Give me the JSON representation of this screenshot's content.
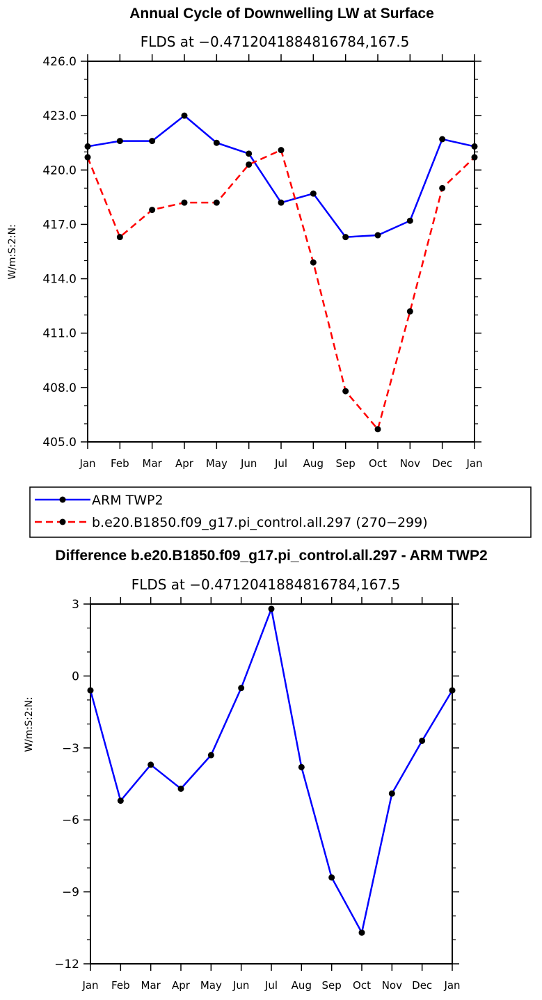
{
  "chart_data": [
    {
      "type": "line",
      "title": "Annual Cycle of Downwelling LW at Surface",
      "subtitle": "FLDS at −0.4712041884816784,167.5",
      "xlabel": "",
      "ylabel": "W/m:S:2:N:",
      "categories": [
        "Jan",
        "Feb",
        "Mar",
        "Apr",
        "May",
        "Jun",
        "Jul",
        "Aug",
        "Sep",
        "Oct",
        "Nov",
        "Dec",
        "Jan"
      ],
      "ylim": [
        405.0,
        426.0
      ],
      "yticks": [
        "405.0",
        "408.0",
        "411.0",
        "414.0",
        "417.0",
        "420.0",
        "423.0",
        "426.0"
      ],
      "series": [
        {
          "name": "ARM TWP2",
          "color": "#0000ff",
          "dash": "solid",
          "values": [
            421.3,
            421.6,
            421.6,
            423.0,
            421.5,
            420.9,
            418.2,
            418.7,
            416.3,
            416.4,
            417.2,
            421.7,
            421.3
          ]
        },
        {
          "name": "b.e20.B1850.f09_g17.pi_control.all.297 (270−299)",
          "color": "#ff0000",
          "dash": "dashed",
          "values": [
            420.7,
            416.3,
            417.8,
            418.2,
            418.2,
            420.3,
            421.1,
            414.9,
            407.8,
            405.7,
            412.2,
            419.0,
            420.7
          ]
        }
      ]
    },
    {
      "type": "line",
      "title": "Difference b.e20.B1850.f09_g17.pi_control.all.297 - ARM TWP2",
      "subtitle": "FLDS at −0.4712041884816784,167.5",
      "xlabel": "",
      "ylabel": "W/m:S:2:N:",
      "categories": [
        "Jan",
        "Feb",
        "Mar",
        "Apr",
        "May",
        "Jun",
        "Jul",
        "Aug",
        "Sep",
        "Oct",
        "Nov",
        "Dec",
        "Jan"
      ],
      "ylim": [
        -12,
        3
      ],
      "yticks": [
        "−12",
        "−9",
        "−6",
        "−3",
        "0",
        "3"
      ],
      "series": [
        {
          "name": "Difference",
          "color": "#0000ff",
          "dash": "solid",
          "values": [
            -0.6,
            -5.2,
            -3.7,
            -4.7,
            -3.3,
            -0.5,
            2.8,
            -3.8,
            -8.4,
            -10.7,
            -4.9,
            -2.7,
            -0.6
          ]
        }
      ]
    }
  ]
}
